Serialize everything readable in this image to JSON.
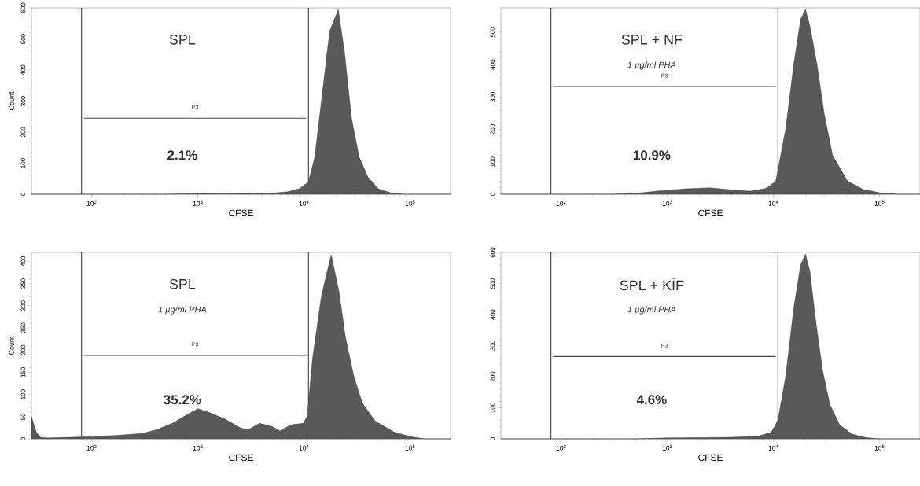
{
  "chart_data": [
    {
      "type": "area",
      "title": "SPL",
      "xlabel": "CFSE",
      "ylabel": "Count",
      "log": "x",
      "series": [
        {
          "color": "#595959",
          "x": [
            27,
            500,
            1200,
            1500,
            2000,
            3000,
            5000,
            7000,
            9000,
            11000,
            12600,
            14800,
            17400,
            21000,
            24000,
            28000,
            33000,
            40000,
            50000,
            65000,
            90000,
            240000
          ],
          "values": [
            0,
            0,
            3,
            2,
            2,
            3,
            4,
            8,
            18,
            40,
            120,
            320,
            525,
            595,
            460,
            245,
            120,
            55,
            18,
            5,
            0,
            0
          ]
        },
        {
          "type": "line",
          "color": "#404040",
          "x": [
            84,
            10500
          ],
          "values": [
            245,
            245
          ]
        }
      ],
      "xlim": [
        27,
        240000
      ],
      "ylim": [
        0,
        600
      ],
      "xticks": [
        {
          "value": 100,
          "label": "10$^{2}$"
        },
        {
          "value": 1000,
          "label": "10$^{3}$"
        },
        {
          "value": 10000,
          "label": "10$^{4}$"
        },
        {
          "value": 100000,
          "label": "10$^{5}$"
        }
      ],
      "yticks": [
        0,
        100,
        200,
        300,
        400,
        500,
        600
      ],
      "ref_lines": [
        {
          "axis": "x",
          "value": 80,
          "color": "#404040"
        },
        {
          "axis": "x",
          "value": 11000,
          "color": "#404040"
        }
      ],
      "annotations": [
        "2.1%",
        "P3"
      ]
    },
    {
      "type": "area",
      "title": "SPL + NF",
      "subtitle": "1 µg/ml PHA",
      "xlabel": "CFSE",
      "log": "x",
      "series": [
        {
          "color": "#595959",
          "x": [
            27,
            300,
            500,
            800,
            1500,
            2500,
            4000,
            6000,
            8500,
            10500,
            13000,
            15500,
            18000,
            20000,
            22000,
            25700,
            30000,
            36000,
            50000,
            70000,
            100000,
            150000,
            240000
          ],
          "values": [
            0,
            0,
            3,
            10,
            17,
            20,
            14,
            10,
            18,
            40,
            200,
            400,
            540,
            570,
            520,
            400,
            250,
            120,
            40,
            15,
            5,
            0,
            0
          ]
        },
        {
          "type": "line",
          "color": "#404040",
          "x": [
            84,
            10500
          ],
          "values": [
            332,
            332
          ]
        }
      ],
      "xlim": [
        27,
        240000
      ],
      "ylim": [
        0,
        575
      ],
      "xticks": [
        {
          "value": 100,
          "label": "10$^{2}$"
        },
        {
          "value": 1000,
          "label": "10$^{3}$"
        },
        {
          "value": 10000,
          "label": "10$^{4}$"
        },
        {
          "value": 100000,
          "label": "10$^{5}$"
        }
      ],
      "yticks": [
        0,
        100,
        200,
        300,
        400,
        500
      ],
      "ref_lines": [
        {
          "axis": "x",
          "value": 80,
          "color": "#404040"
        },
        {
          "axis": "x",
          "value": 11000,
          "color": "#404040"
        }
      ],
      "annotations": [
        "10.9%",
        "P3"
      ]
    },
    {
      "type": "area",
      "title": "SPL",
      "subtitle": "1 µg/ml PHA",
      "xlabel": "CFSE",
      "ylabel": "Count",
      "log": "x",
      "series": [
        {
          "color": "#595959",
          "x": [
            27,
            30,
            33,
            38,
            105,
            174,
            295,
            400,
            575,
            795,
            1000,
            1260,
            1780,
            2510,
            2950,
            3800,
            5000,
            5900,
            7600,
            9800,
            10700,
            12000,
            14500,
            18000,
            21400,
            24500,
            29500,
            35500,
            46800,
            70800,
            100000,
            138000,
            240000
          ],
          "values": [
            50,
            15,
            3,
            2,
            5,
            8,
            12,
            20,
            35,
            55,
            68,
            60,
            45,
            25,
            20,
            35,
            28,
            18,
            32,
            35,
            50,
            180,
            320,
            415,
            330,
            230,
            140,
            80,
            40,
            15,
            5,
            0,
            0
          ]
        },
        {
          "type": "line",
          "color": "#404040",
          "x": [
            84,
            10500
          ],
          "values": [
            188,
            188
          ]
        }
      ],
      "xlim": [
        27,
        240000
      ],
      "ylim": [
        0,
        420
      ],
      "xticks": [
        {
          "value": 100,
          "label": "10$^{2}$"
        },
        {
          "value": 1000,
          "label": "10$^{3}$"
        },
        {
          "value": 10000,
          "label": "10$^{4}$"
        },
        {
          "value": 100000,
          "label": "10$^{5}$"
        }
      ],
      "yticks": [
        0,
        50,
        100,
        150,
        200,
        250,
        300,
        350,
        400
      ],
      "ref_lines": [
        {
          "axis": "x",
          "value": 80,
          "color": "#404040"
        },
        {
          "axis": "x",
          "value": 11000,
          "color": "#404040"
        }
      ],
      "annotations": [
        "35.2%",
        "P3"
      ]
    },
    {
      "type": "area",
      "title": "SPL + KİF",
      "subtitle": "1 µg/ml PHA",
      "xlabel": "CFSE",
      "log": "x",
      "series": [
        {
          "color": "#595959",
          "x": [
            27,
            500,
            1000,
            2000,
            4000,
            7000,
            9500,
            11000,
            13000,
            15500,
            18000,
            20000,
            22000,
            25000,
            29000,
            34000,
            42000,
            55000,
            75000,
            100000,
            240000
          ],
          "values": [
            0,
            0,
            3,
            4,
            5,
            8,
            20,
            60,
            200,
            420,
            560,
            595,
            540,
            380,
            220,
            110,
            45,
            15,
            4,
            0,
            0
          ]
        },
        {
          "type": "line",
          "color": "#404040",
          "x": [
            84,
            10500
          ],
          "values": [
            265,
            265
          ]
        }
      ],
      "xlim": [
        27,
        240000
      ],
      "ylim": [
        0,
        600
      ],
      "xticks": [
        {
          "value": 100,
          "label": "10$^{2}$"
        },
        {
          "value": 1000,
          "label": "10$^{3}$"
        },
        {
          "value": 10000,
          "label": "10$^{4}$"
        },
        {
          "value": 100000,
          "label": "10$^{5}$"
        }
      ],
      "yticks": [
        0,
        100,
        200,
        300,
        400,
        500,
        600
      ],
      "ref_lines": [
        {
          "axis": "x",
          "value": 80,
          "color": "#404040"
        },
        {
          "axis": "x",
          "value": 11000,
          "color": "#404040"
        }
      ],
      "annotations": [
        "4.6%",
        "P3"
      ]
    }
  ]
}
